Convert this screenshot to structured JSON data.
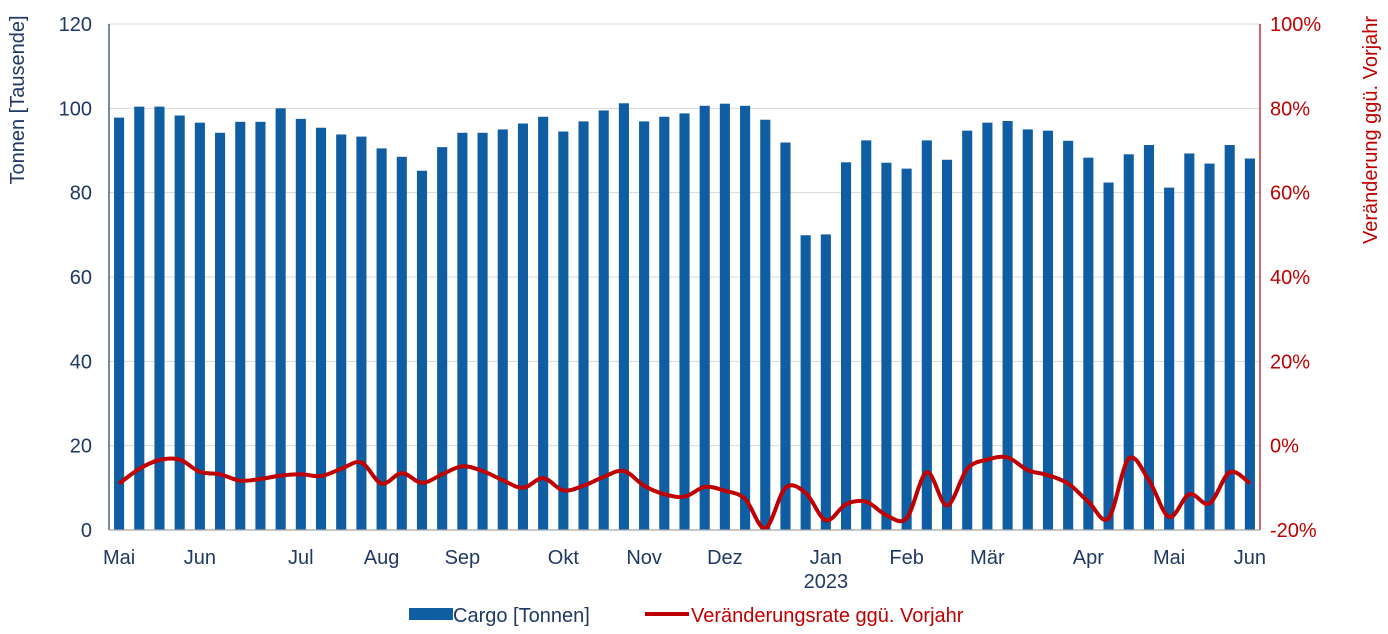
{
  "chart_data": {
    "type": "bar",
    "y_left": {
      "label": "Tonnen [Tausende]",
      "ylim": [
        0,
        120
      ],
      "ticks": [
        "0",
        "20",
        "40",
        "60",
        "80",
        "100",
        "120"
      ]
    },
    "y_right": {
      "label": "Veränderung ggü. Vorjahr",
      "ylim": [
        -20,
        100
      ],
      "ticks": [
        "-20%",
        "0%",
        "20%",
        "40%",
        "60%",
        "80%",
        "100%"
      ]
    },
    "x_labels": [
      "Mai",
      "Jun",
      "Jul",
      "Aug",
      "Sep",
      "Okt",
      "Nov",
      "Dez",
      "Jan",
      "Feb",
      "Mär",
      "Apr",
      "Mai",
      "Jun"
    ],
    "x_label_index": [
      0,
      4,
      9,
      13,
      17,
      22,
      26,
      30,
      35,
      39,
      43,
      48,
      52,
      56
    ],
    "year_label": "2023",
    "year_label_index": 35,
    "grid": true,
    "legend_position": "bottom",
    "colors": {
      "bar": "#0F5DA3",
      "line": "#C00000",
      "grid": "#D9D9D9",
      "axis_left": "#1F3864",
      "axis_right": "#C00000"
    },
    "series": [
      {
        "name": "Cargo [Tonnen]",
        "type": "bar",
        "axis": "left",
        "values": [
          97.8,
          100.4,
          100.4,
          98.3,
          96.6,
          94.2,
          96.8,
          96.8,
          100.0,
          97.5,
          95.4,
          93.8,
          93.3,
          90.5,
          88.5,
          85.2,
          90.8,
          94.2,
          94.2,
          95.0,
          96.4,
          98.0,
          94.5,
          96.9,
          99.5,
          101.2,
          96.9,
          98.0,
          98.8,
          100.6,
          101.1,
          100.6,
          97.3,
          91.9,
          69.9,
          70.1,
          87.2,
          92.4,
          87.1,
          85.7,
          92.4,
          87.8,
          94.7,
          96.6,
          97.0,
          95.0,
          94.7,
          92.3,
          88.3,
          82.4,
          89.1,
          91.3,
          81.2,
          89.3,
          86.9,
          91.3,
          88.1
        ]
      },
      {
        "name": "Veränderungsrate ggü. Vorjahr",
        "type": "line",
        "axis": "right",
        "values": [
          -9.0,
          -5.5,
          -3.4,
          -3.3,
          -6.2,
          -6.8,
          -8.3,
          -7.9,
          -7.1,
          -6.8,
          -7.2,
          -5.5,
          -4.0,
          -9.0,
          -6.5,
          -8.8,
          -6.8,
          -4.9,
          -6.0,
          -8.2,
          -10.0,
          -7.7,
          -10.6,
          -9.5,
          -7.4,
          -6.0,
          -9.5,
          -11.5,
          -12.1,
          -9.8,
          -10.7,
          -12.6,
          -19.6,
          -10.0,
          -11.2,
          -17.7,
          -13.9,
          -13.3,
          -16.5,
          -17.2,
          -6.3,
          -14.2,
          -5.5,
          -3.3,
          -2.8,
          -5.8,
          -7.0,
          -9.0,
          -13.3,
          -17.2,
          -3.1,
          -8.2,
          -16.9,
          -11.5,
          -13.7,
          -6.3,
          -8.9
        ]
      }
    ]
  }
}
